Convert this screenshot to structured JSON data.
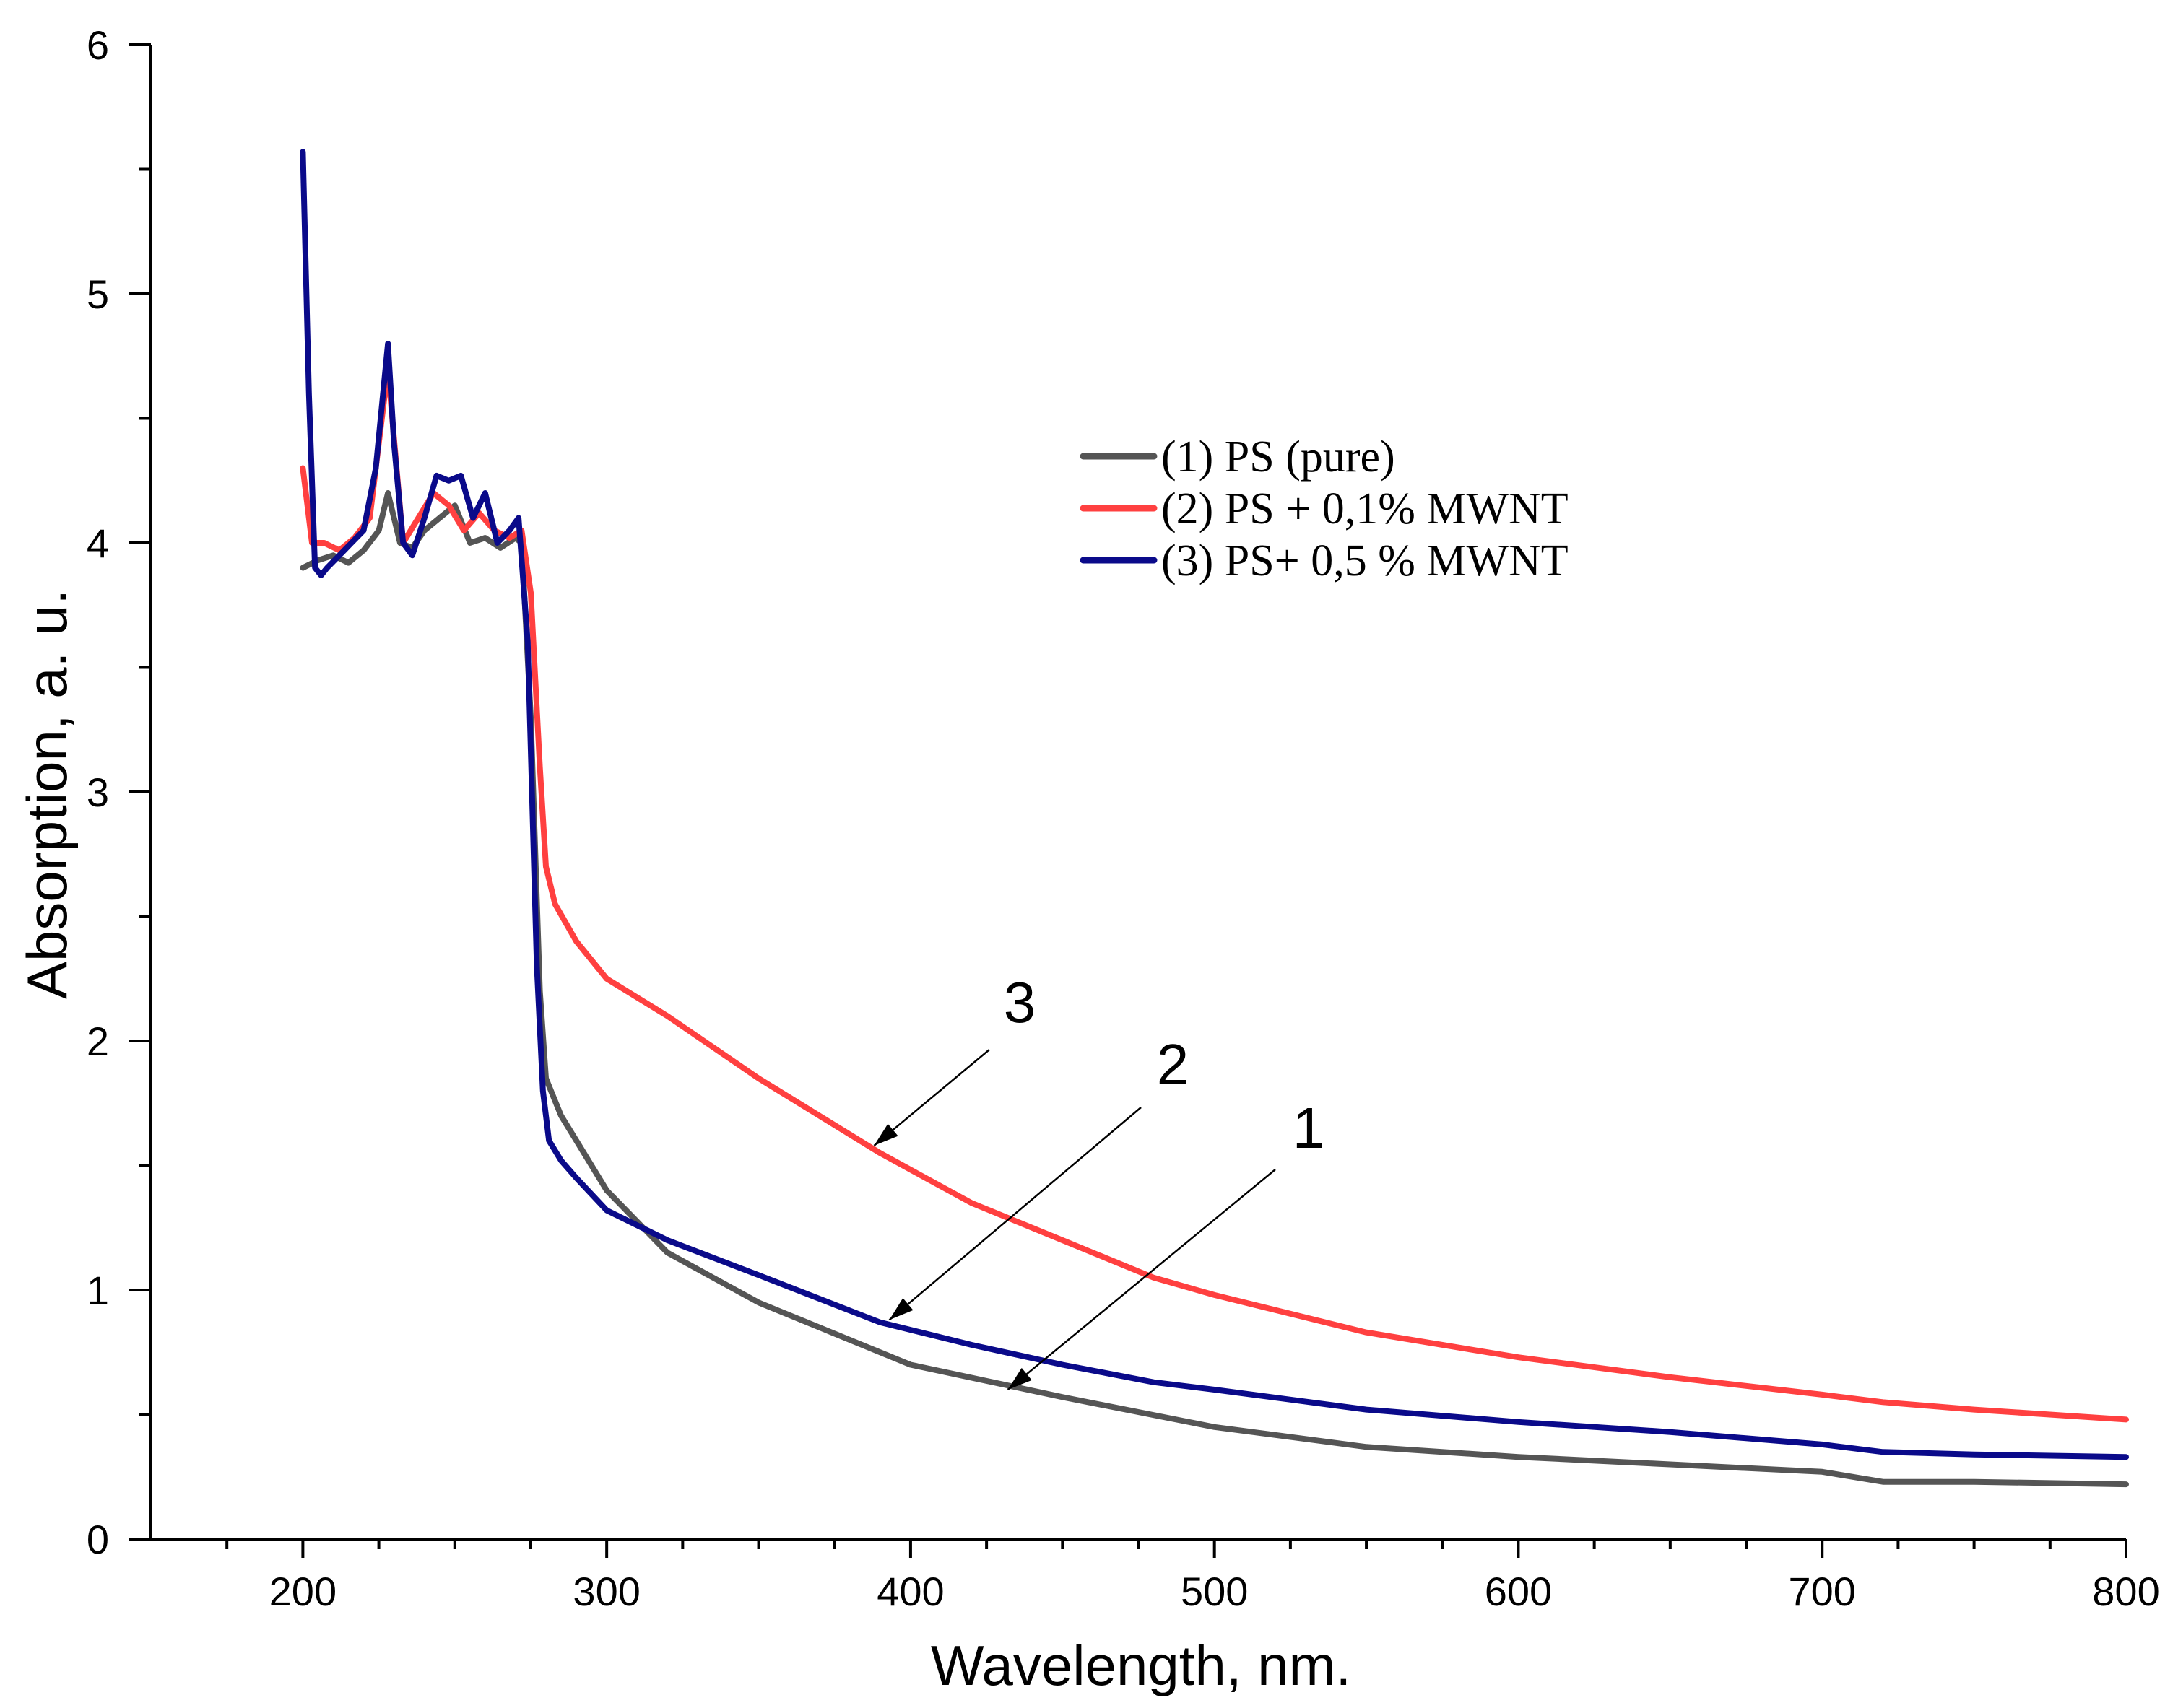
{
  "chart_data": {
    "type": "line",
    "title": "",
    "xlabel": "Wavelength, nm.",
    "ylabel": "Absorption, a. u.",
    "xlim": [
      150,
      800
    ],
    "ylim": [
      0,
      6
    ],
    "xticks": [
      200,
      300,
      400,
      500,
      600,
      700,
      800
    ],
    "yticks": [
      0,
      1,
      2,
      3,
      4,
      5,
      6
    ],
    "legend_position": "upper-right-center",
    "series": [
      {
        "name": "(1) PS (pure)",
        "color": "#555555",
        "x": [
          200,
          205,
          210,
          215,
          220,
          225,
          228,
          232,
          236,
          240,
          245,
          250,
          255,
          260,
          265,
          270,
          272,
          275,
          278,
          280,
          285,
          290,
          300,
          320,
          350,
          400,
          450,
          500,
          550,
          600,
          650,
          700,
          720,
          750,
          800
        ],
        "y": [
          3.9,
          3.93,
          3.95,
          3.92,
          3.97,
          4.05,
          4.2,
          4.0,
          3.98,
          4.05,
          4.1,
          4.15,
          4.0,
          4.02,
          3.98,
          4.02,
          4.0,
          3.3,
          2.2,
          1.85,
          1.7,
          1.6,
          1.4,
          1.15,
          0.95,
          0.7,
          0.57,
          0.45,
          0.37,
          0.33,
          0.3,
          0.27,
          0.23,
          0.23,
          0.22
        ]
      },
      {
        "name": "(2) PS + 0,1% MWNT",
        "color": "#ff4040",
        "x": [
          200,
          203,
          207,
          212,
          217,
          222,
          228,
          233,
          238,
          243,
          248,
          253,
          258,
          263,
          268,
          272,
          275,
          278,
          280,
          283,
          290,
          300,
          320,
          350,
          390,
          420,
          450,
          480,
          500,
          550,
          600,
          650,
          700,
          720,
          750,
          800
        ],
        "y": [
          4.3,
          4.0,
          4.0,
          3.97,
          4.02,
          4.1,
          4.7,
          4.0,
          4.1,
          4.2,
          4.15,
          4.05,
          4.12,
          4.05,
          4.02,
          4.05,
          3.8,
          3.1,
          2.7,
          2.55,
          2.4,
          2.25,
          2.1,
          1.85,
          1.55,
          1.35,
          1.2,
          1.05,
          0.98,
          0.83,
          0.73,
          0.65,
          0.58,
          0.55,
          0.52,
          0.48
        ]
      },
      {
        "name": "(3) PS+ 0,5 % MWNT",
        "color": "#0a0a8a",
        "x": [
          200,
          202,
          204,
          206,
          208,
          212,
          216,
          220,
          224,
          228,
          230,
          233,
          236,
          240,
          244,
          248,
          252,
          256,
          260,
          264,
          268,
          271,
          274,
          277,
          279,
          281,
          285,
          290,
          300,
          320,
          350,
          390,
          420,
          450,
          480,
          500,
          550,
          600,
          650,
          700,
          720,
          750,
          800
        ],
        "y": [
          5.57,
          4.6,
          3.9,
          3.87,
          3.9,
          3.95,
          4.0,
          4.05,
          4.3,
          4.8,
          4.4,
          4.0,
          3.95,
          4.1,
          4.27,
          4.25,
          4.27,
          4.1,
          4.2,
          4.0,
          4.05,
          4.1,
          3.6,
          2.3,
          1.8,
          1.6,
          1.52,
          1.45,
          1.32,
          1.2,
          1.06,
          0.87,
          0.78,
          0.7,
          0.63,
          0.6,
          0.52,
          0.47,
          0.43,
          0.38,
          0.35,
          0.34,
          0.33
        ]
      }
    ],
    "annotations": [
      {
        "label": "3",
        "points_to": {
          "x": 388,
          "y": 1.58
        }
      },
      {
        "label": "2",
        "points_to": {
          "x": 393,
          "y": 0.88
        }
      },
      {
        "label": "1",
        "points_to": {
          "x": 432,
          "y": 0.6
        }
      }
    ]
  }
}
